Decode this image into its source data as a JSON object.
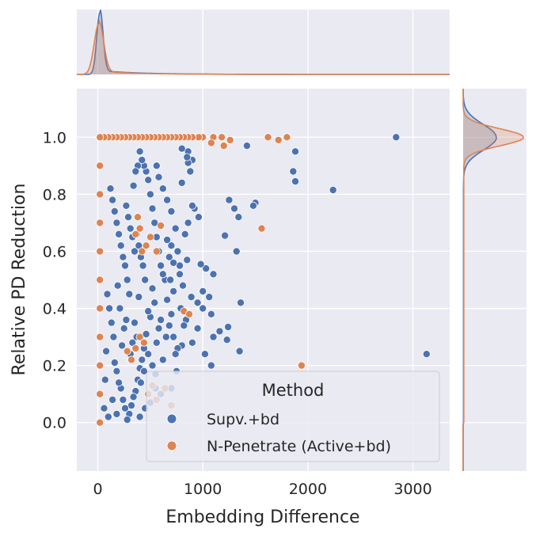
{
  "chart_data": {
    "type": "scatter",
    "variant": "jointplot-with-marginal-kde",
    "xlabel": "Embedding Difference",
    "ylabel": "Relative PD Reduction",
    "xlim": [
      -200,
      3350
    ],
    "ylim": [
      -0.17,
      1.17
    ],
    "x_ticks": [
      0,
      1000,
      2000,
      3000
    ],
    "y_ticks": [
      0.0,
      0.2,
      0.4,
      0.6,
      0.8,
      1.0
    ],
    "x_tick_labels": [
      "0",
      "1000",
      "2000",
      "3000"
    ],
    "y_tick_labels": [
      "0.0",
      "0.2",
      "0.4",
      "0.6",
      "0.8",
      "1.0"
    ],
    "grid": true,
    "legend": {
      "title": "Method",
      "placement": "lower-right"
    },
    "background_color": "#eaeaf2",
    "series": [
      {
        "name": "Supv.+bd",
        "color": "#4c72b0",
        "points": [
          [
            2840,
            1.0
          ],
          [
            1420,
            0.97
          ],
          [
            1880,
            0.95
          ],
          [
            1860,
            0.88
          ],
          [
            1880,
            0.845
          ],
          [
            2240,
            0.815
          ],
          [
            3130,
            0.24
          ],
          [
            1500,
            0.77
          ],
          [
            1480,
            0.76
          ],
          [
            1250,
            0.78
          ],
          [
            1300,
            0.75
          ],
          [
            1340,
            0.72
          ],
          [
            1210,
            0.655
          ],
          [
            1320,
            0.6
          ],
          [
            1360,
            0.42
          ],
          [
            1240,
            0.335
          ],
          [
            1160,
            0.32
          ],
          [
            1350,
            0.25
          ],
          [
            1230,
            0.29
          ],
          [
            1100,
            0.3
          ],
          [
            1080,
            0.2
          ],
          [
            1060,
            0.44
          ],
          [
            1100,
            0.52
          ],
          [
            1030,
            0.54
          ],
          [
            980,
            0.555
          ],
          [
            960,
            0.72
          ],
          [
            1000,
            0.4
          ],
          [
            950,
            0.42
          ],
          [
            1080,
            0.38
          ],
          [
            1000,
            0.46
          ],
          [
            900,
            0.92
          ],
          [
            860,
            0.95
          ],
          [
            860,
            0.91
          ],
          [
            800,
            0.96
          ],
          [
            880,
            0.88
          ],
          [
            850,
            0.93
          ],
          [
            800,
            0.84
          ],
          [
            920,
            0.75
          ],
          [
            900,
            0.76
          ],
          [
            860,
            0.7
          ],
          [
            830,
            0.66
          ],
          [
            850,
            0.57
          ],
          [
            780,
            0.55
          ],
          [
            810,
            0.48
          ],
          [
            890,
            0.44
          ],
          [
            790,
            0.4
          ],
          [
            840,
            0.36
          ],
          [
            820,
            0.34
          ],
          [
            800,
            0.27
          ],
          [
            760,
            0.26
          ],
          [
            740,
            0.24
          ],
          [
            720,
            0.3
          ],
          [
            700,
            0.38
          ],
          [
            660,
            0.43
          ],
          [
            640,
            0.5
          ],
          [
            620,
            0.52
          ],
          [
            600,
            0.55
          ],
          [
            580,
            0.6
          ],
          [
            560,
            0.65
          ],
          [
            540,
            0.7
          ],
          [
            520,
            0.75
          ],
          [
            500,
            0.8
          ],
          [
            480,
            0.85
          ],
          [
            460,
            0.88
          ],
          [
            440,
            0.9
          ],
          [
            420,
            0.92
          ],
          [
            400,
            0.95
          ],
          [
            380,
            0.9
          ],
          [
            360,
            0.88
          ],
          [
            340,
            0.83
          ],
          [
            700,
            0.62
          ],
          [
            680,
            0.58
          ],
          [
            660,
            0.64
          ],
          [
            720,
            0.46
          ],
          [
            680,
            0.34
          ],
          [
            650,
            0.3
          ],
          [
            620,
            0.22
          ],
          [
            600,
            0.36
          ],
          [
            580,
            0.33
          ],
          [
            560,
            0.28
          ],
          [
            540,
            0.42
          ],
          [
            520,
            0.47
          ],
          [
            500,
            0.37
          ],
          [
            480,
            0.39
          ],
          [
            460,
            0.31
          ],
          [
            440,
            0.26
          ],
          [
            420,
            0.22
          ],
          [
            400,
            0.19
          ],
          [
            380,
            0.15
          ],
          [
            360,
            0.11
          ],
          [
            340,
            0.09
          ],
          [
            320,
            0.06
          ],
          [
            300,
            0.03
          ],
          [
            280,
            0.01
          ],
          [
            260,
            0.05
          ],
          [
            240,
            0.08
          ],
          [
            220,
            0.12
          ],
          [
            200,
            0.14
          ],
          [
            180,
            0.18
          ],
          [
            160,
            0.21
          ],
          [
            300,
            0.45
          ],
          [
            280,
            0.5
          ],
          [
            260,
            0.55
          ],
          [
            240,
            0.58
          ],
          [
            220,
            0.62
          ],
          [
            200,
            0.66
          ],
          [
            180,
            0.7
          ],
          [
            160,
            0.74
          ],
          [
            140,
            0.78
          ],
          [
            120,
            0.82
          ],
          [
            350,
            0.6
          ],
          [
            330,
            0.65
          ],
          [
            310,
            0.68
          ],
          [
            290,
            0.72
          ],
          [
            270,
            0.76
          ],
          [
            450,
            0.5
          ],
          [
            430,
            0.55
          ],
          [
            410,
            0.58
          ],
          [
            390,
            0.62
          ],
          [
            370,
            0.66
          ],
          [
            600,
            0.1
          ],
          [
            550,
            0.12
          ],
          [
            500,
            0.07
          ],
          [
            450,
            0.05
          ],
          [
            400,
            0.02
          ],
          [
            700,
            0.12
          ],
          [
            750,
            0.18
          ],
          [
            900,
            0.28
          ],
          [
            950,
            0.33
          ],
          [
            1020,
            0.24
          ],
          [
            550,
            0.17
          ],
          [
            520,
            0.2
          ],
          [
            480,
            0.24
          ],
          [
            440,
            0.18
          ],
          [
            410,
            0.14
          ],
          [
            150,
            0.3
          ],
          [
            130,
            0.35
          ],
          [
            110,
            0.4
          ],
          [
            90,
            0.45
          ],
          [
            80,
            0.25
          ],
          [
            70,
            0.15
          ],
          [
            60,
            0.05
          ],
          [
            100,
            0.02
          ],
          [
            140,
            0.08
          ],
          [
            180,
            0.03
          ],
          [
            230,
            0.27
          ],
          [
            250,
            0.33
          ],
          [
            270,
            0.36
          ],
          [
            210,
            0.4
          ],
          [
            190,
            0.48
          ],
          [
            620,
            0.82
          ],
          [
            580,
            0.86
          ],
          [
            560,
            0.9
          ],
          [
            660,
            0.78
          ],
          [
            700,
            0.74
          ],
          [
            740,
            0.68
          ],
          [
            760,
            0.6
          ],
          [
            780,
            0.52
          ],
          [
            720,
            0.56
          ],
          [
            690,
            0.5
          ],
          [
            350,
            0.35
          ],
          [
            330,
            0.28
          ],
          [
            310,
            0.24
          ],
          [
            370,
            0.3
          ],
          [
            390,
            0.44
          ]
        ]
      },
      {
        "name": "N-Penetrate (Active+bd)",
        "color": "#dd8452",
        "points": [
          [
            1940,
            0.2
          ],
          [
            1560,
            0.68
          ],
          [
            1620,
            1.0
          ],
          [
            1800,
            1.0
          ],
          [
            1720,
            0.99
          ],
          [
            1260,
            0.99
          ],
          [
            1180,
            1.0
          ],
          [
            1100,
            1.0
          ],
          [
            1080,
            0.98
          ],
          [
            1000,
            1.0
          ],
          [
            960,
            1.0
          ],
          [
            900,
            1.0
          ],
          [
            860,
            1.0
          ],
          [
            820,
            1.0
          ],
          [
            780,
            1.0
          ],
          [
            740,
            1.0
          ],
          [
            700,
            1.0
          ],
          [
            660,
            1.0
          ],
          [
            620,
            1.0
          ],
          [
            580,
            1.0
          ],
          [
            540,
            1.0
          ],
          [
            500,
            1.0
          ],
          [
            460,
            1.0
          ],
          [
            420,
            1.0
          ],
          [
            380,
            1.0
          ],
          [
            340,
            1.0
          ],
          [
            300,
            1.0
          ],
          [
            260,
            1.0
          ],
          [
            220,
            1.0
          ],
          [
            180,
            1.0
          ],
          [
            140,
            1.0
          ],
          [
            100,
            1.0
          ],
          [
            60,
            1.0
          ],
          [
            20,
            1.0
          ],
          [
            1200,
            0.97
          ],
          [
            820,
            0.39
          ],
          [
            870,
            0.38
          ],
          [
            600,
            0.69
          ],
          [
            560,
            0.6
          ],
          [
            500,
            0.65
          ],
          [
            460,
            0.62
          ],
          [
            420,
            0.6
          ],
          [
            400,
            0.68
          ],
          [
            380,
            0.72
          ],
          [
            360,
            0.66
          ],
          [
            440,
            0.28
          ],
          [
            400,
            0.3
          ],
          [
            360,
            0.26
          ],
          [
            320,
            0.22
          ],
          [
            280,
            0.25
          ],
          [
            520,
            0.13
          ],
          [
            480,
            0.1
          ],
          [
            560,
            0.08
          ],
          [
            640,
            0.12
          ],
          [
            700,
            0.06
          ],
          [
            20,
            0.5
          ],
          [
            20,
            0.4
          ],
          [
            20,
            0.3
          ],
          [
            20,
            0.2
          ],
          [
            20,
            0.1
          ],
          [
            20,
            0.0
          ],
          [
            20,
            0.6
          ],
          [
            20,
            0.7
          ],
          [
            20,
            0.8
          ],
          [
            20,
            0.9
          ]
        ]
      }
    ],
    "marginal_kde": {
      "x": [
        {
          "name": "Supv.+bd",
          "color": "#4c72b0",
          "peak_at": 20,
          "bandwidth": 30
        },
        {
          "name": "N-Penetrate (Active+bd)",
          "color": "#dd8452",
          "peak_at": 10,
          "bandwidth": 45
        }
      ],
      "y": [
        {
          "name": "Supv.+bd",
          "color": "#4c72b0",
          "peak_at": 1.0,
          "bandwidth": 0.045
        },
        {
          "name": "N-Penetrate (Active+bd)",
          "color": "#dd8452",
          "peak_at": 1.0,
          "bandwidth": 0.03
        }
      ]
    }
  }
}
